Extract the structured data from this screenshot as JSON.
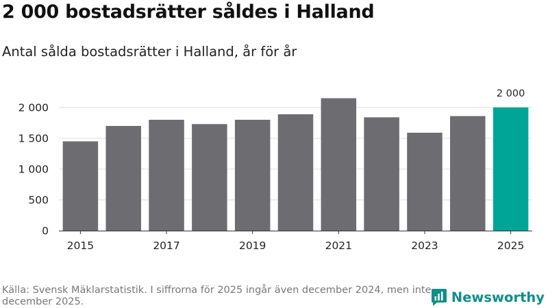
{
  "header": {
    "title": "2 000 bostadsrätter såldes i Halland",
    "subtitle": "Antal sålda bostadsrätter i Halland, år för år"
  },
  "chart_data": {
    "type": "bar",
    "title": "2 000 bostadsrätter såldes i Halland",
    "subtitle": "Antal sålda bostadsrätter i Halland, år för år",
    "categories": [
      "2015",
      "2016",
      "2017",
      "2018",
      "2019",
      "2020",
      "2021",
      "2022",
      "2023",
      "2024",
      "2025"
    ],
    "x_tick_labels": [
      "2015",
      "2017",
      "2019",
      "2021",
      "2023",
      "2025"
    ],
    "values": [
      1450,
      1700,
      1800,
      1730,
      1800,
      1890,
      2150,
      1840,
      1590,
      1860,
      2000
    ],
    "ylim": [
      0,
      2000
    ],
    "y_ticks": [
      0,
      500,
      1000,
      1500,
      2000
    ],
    "y_tick_labels": [
      "0",
      "500",
      "1 000",
      "1 500",
      "2 000"
    ],
    "data_labels": [
      {
        "category": "2025",
        "text": "2 000"
      }
    ],
    "xlabel": "",
    "ylabel": "",
    "grid": true,
    "colors": {
      "bar": "#6d6c71",
      "highlight": "#00a598",
      "grid": "#dddddd",
      "axis": "#333333"
    },
    "highlight_category": "2025"
  },
  "footer": {
    "source": "Källa: Svensk Mäklarstatistik. I siffrorna för 2025 ingår även december 2024, men inte december 2025.",
    "brand": "Newsworthy",
    "brand_color": "#0e8f88",
    "logo_icon": "newsworthy-logo-icon"
  }
}
